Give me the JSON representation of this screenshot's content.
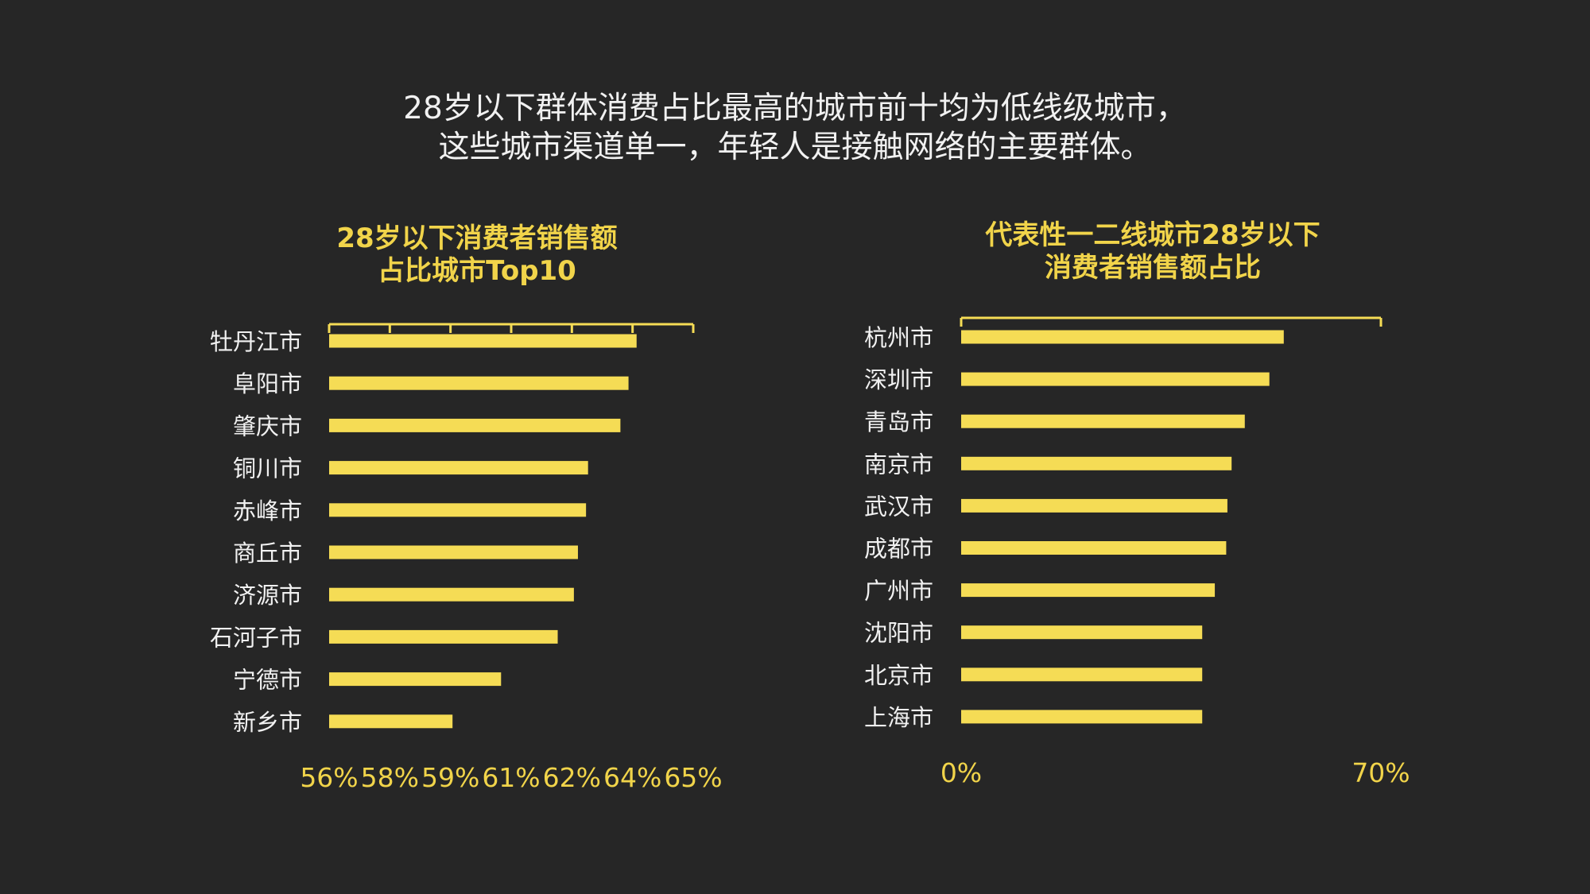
{
  "headline": {
    "line1": "28岁以下群体消费占比最高的城市前十均为低线级城市，",
    "line2": "这些城市渠道单一，年轻人是接触网络的主要群体。"
  },
  "colors": {
    "background": "#262626",
    "bar": "#f5dc55",
    "label": "#f1f1f1",
    "accent_text": "#f1d44a"
  },
  "chart_data": [
    {
      "type": "bar",
      "orientation": "horizontal",
      "title_lines": [
        "28岁以下消费者销售额",
        "占比城市Top10"
      ],
      "categories": [
        "牡丹江市",
        "阜阳市",
        "肇庆市",
        "铜川市",
        "赤峰市",
        "商丘市",
        "济源市",
        "石河子市",
        "宁德市",
        "新乡市"
      ],
      "values": [
        63.6,
        63.4,
        63.2,
        62.4,
        62.35,
        62.15,
        62.05,
        61.65,
        60.25,
        59.05
      ],
      "value_unit": "%",
      "tick_labels": [
        "56%",
        "58%",
        "59%",
        "61%",
        "62%",
        "64%",
        "65%"
      ],
      "xlim": [
        56,
        65
      ],
      "grid": false
    },
    {
      "type": "bar",
      "orientation": "horizontal",
      "title_lines": [
        "代表性一二线城市28岁以下",
        "消费者销售额占比"
      ],
      "categories": [
        "杭州市",
        "深圳市",
        "青岛市",
        "南京市",
        "武汉市",
        "成都市",
        "广州市",
        "沈阳市",
        "北京市",
        "上海市"
      ],
      "values": [
        53.8,
        51.4,
        47.3,
        45.1,
        44.4,
        44.2,
        42.3,
        40.2,
        40.2,
        40.2
      ],
      "value_unit": "%",
      "tick_labels": [
        "0%",
        "70%"
      ],
      "xlim": [
        0,
        70
      ],
      "grid": false
    }
  ]
}
